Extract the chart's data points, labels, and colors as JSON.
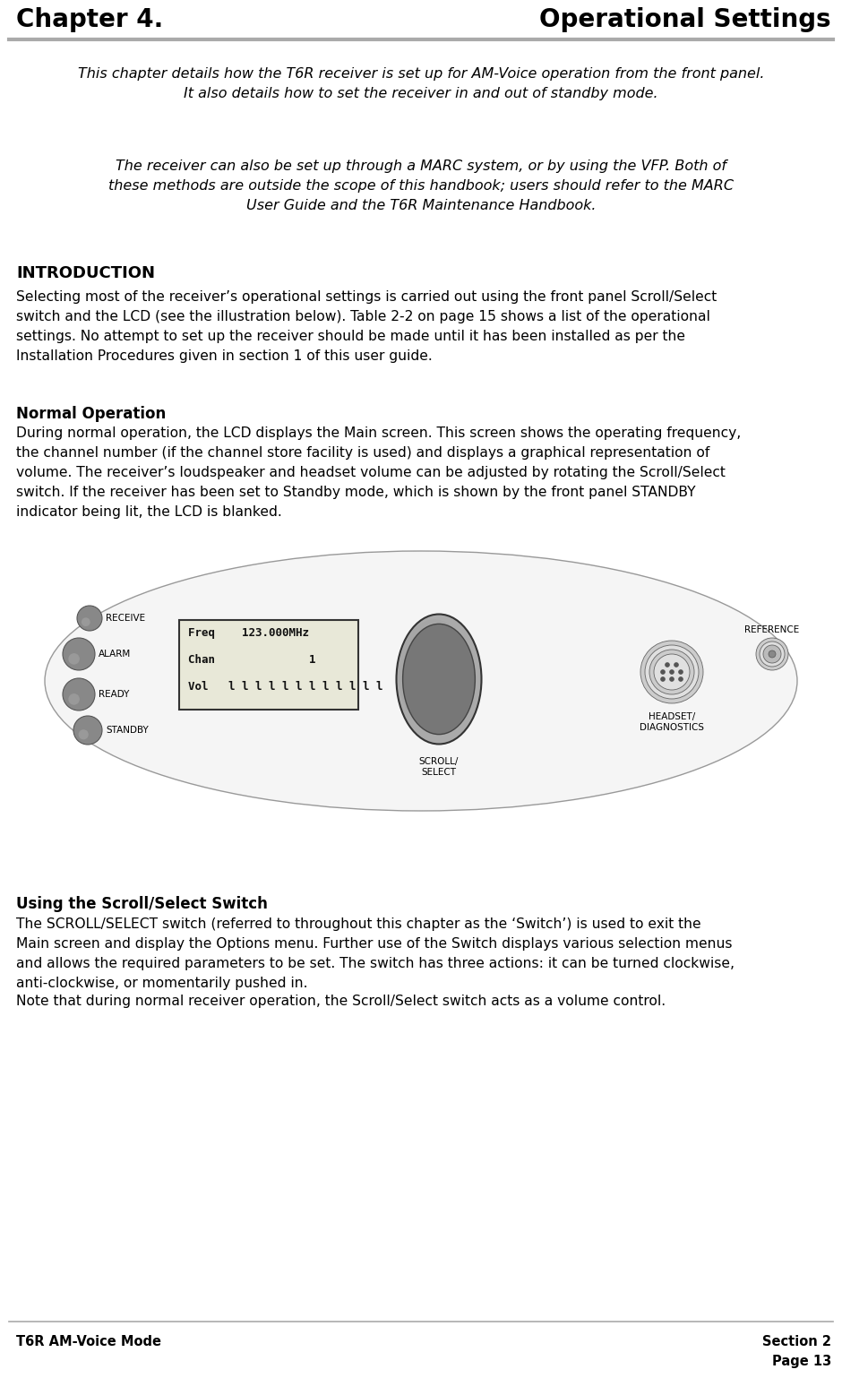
{
  "title_left": "Chapter 4.",
  "title_right": "Operational Settings",
  "header_line_color": "#aaaaaa",
  "footer_line_color": "#aaaaaa",
  "italic_para1": "This chapter details how the T6R receiver is set up for AM-Voice operation from the front panel.\nIt also details how to set the receiver in and out of standby mode.",
  "italic_para2": "The receiver can also be set up through a MARC system, or by using the VFP. Both of\nthese methods are outside the scope of this handbook; users should refer to the MARC\nUser Guide and the T6R Maintenance Handbook.",
  "section_intro": "INTRODUCTION",
  "intro_body": "Selecting most of the receiver’s operational settings is carried out using the front panel Scroll/Select\nswitch and the LCD (see the illustration below). Table 2-2 on page 15 shows a list of the operational\nsettings. No attempt to set up the receiver should be made until it has been installed as per the\nInstallation Procedures given in section 1 of this user guide.",
  "normal_op_title": "Normal Operation",
  "normal_op_body": "During normal operation, the LCD displays the Main screen. This screen shows the operating frequency,\nthe channel number (if the channel store facility is used) and displays a graphical representation of\nvolume. The receiver’s loudspeaker and headset volume can be adjusted by rotating the Scroll/Select\nswitch. If the receiver has been set to Standby mode, which is shown by the front panel STANDBY\nindicator being lit, the LCD is blanked.",
  "scroll_title": "Using the Scroll/Select Switch",
  "scroll_body": "The SCROLL/SELECT switch (referred to throughout this chapter as the ‘Switch’) is used to exit the\nMain screen and display the Options menu. Further use of the Switch displays various selection menus\nand allows the required parameters to be set. The switch has three actions: it can be turned clockwise,\nanti-clockwise, or momentarily pushed in.",
  "note_text": "Note that during normal receiver operation, the Scroll/Select switch acts as a volume control.",
  "footer_left": "T6R AM-Voice Mode",
  "footer_right_line1": "Section 2",
  "footer_right_line2": "Page 13",
  "bg_color": "#ffffff",
  "text_color": "#000000",
  "title_font_size": 20,
  "body_font_size": 11.2,
  "heading_font_size": 13,
  "subheading_font_size": 12,
  "italic_font_size": 11.5,
  "indicator_labels": [
    "RECEIVE",
    "ALARM",
    "READY",
    "STANDBY"
  ],
  "scroll_label": "SCROLL/\nSELECT"
}
